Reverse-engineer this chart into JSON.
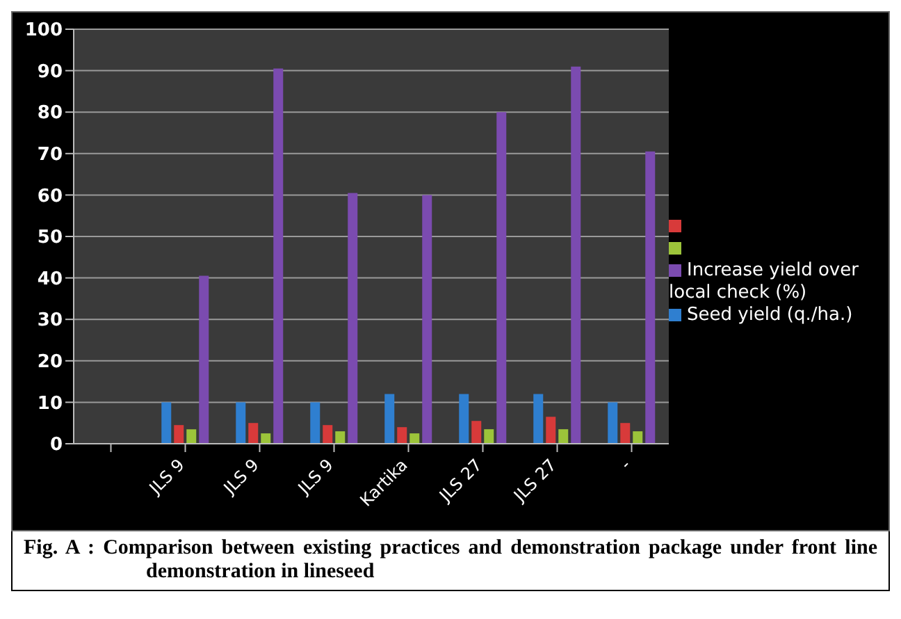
{
  "chart_data": {
    "type": "bar",
    "categories": [
      null,
      "JLS 9",
      "JLS 9",
      "JLS 9",
      "Kartika",
      "JLS 27",
      "JLS 27",
      "-"
    ],
    "series": [
      {
        "name": "Seed yield (q./ha.)",
        "color": "#2f7fd0",
        "values": [
          null,
          10,
          10,
          10,
          12,
          12,
          12,
          10
        ]
      },
      {
        "color": "#d83a3a",
        "values": [
          null,
          4.5,
          5,
          4.5,
          4,
          5.5,
          6.5,
          5
        ]
      },
      {
        "color": "#9cc43a",
        "values": [
          null,
          3.5,
          2.5,
          3,
          2.5,
          3.5,
          3.5,
          3
        ]
      },
      {
        "name": "Increase yield over local check (%)",
        "color": "#7b4bb0",
        "values": [
          null,
          40.5,
          90.5,
          60.5,
          60,
          80,
          91,
          70.5
        ]
      }
    ],
    "ylim": [
      0,
      100
    ],
    "yticks": [
      0,
      10,
      20,
      30,
      40,
      50,
      60,
      70,
      80,
      90,
      100
    ],
    "grid": "y",
    "legend": "right",
    "annotations": [
      "Fig. A :  Comparison between existing practices and demonstration package under front line demonstration in lineseed"
    ]
  }
}
